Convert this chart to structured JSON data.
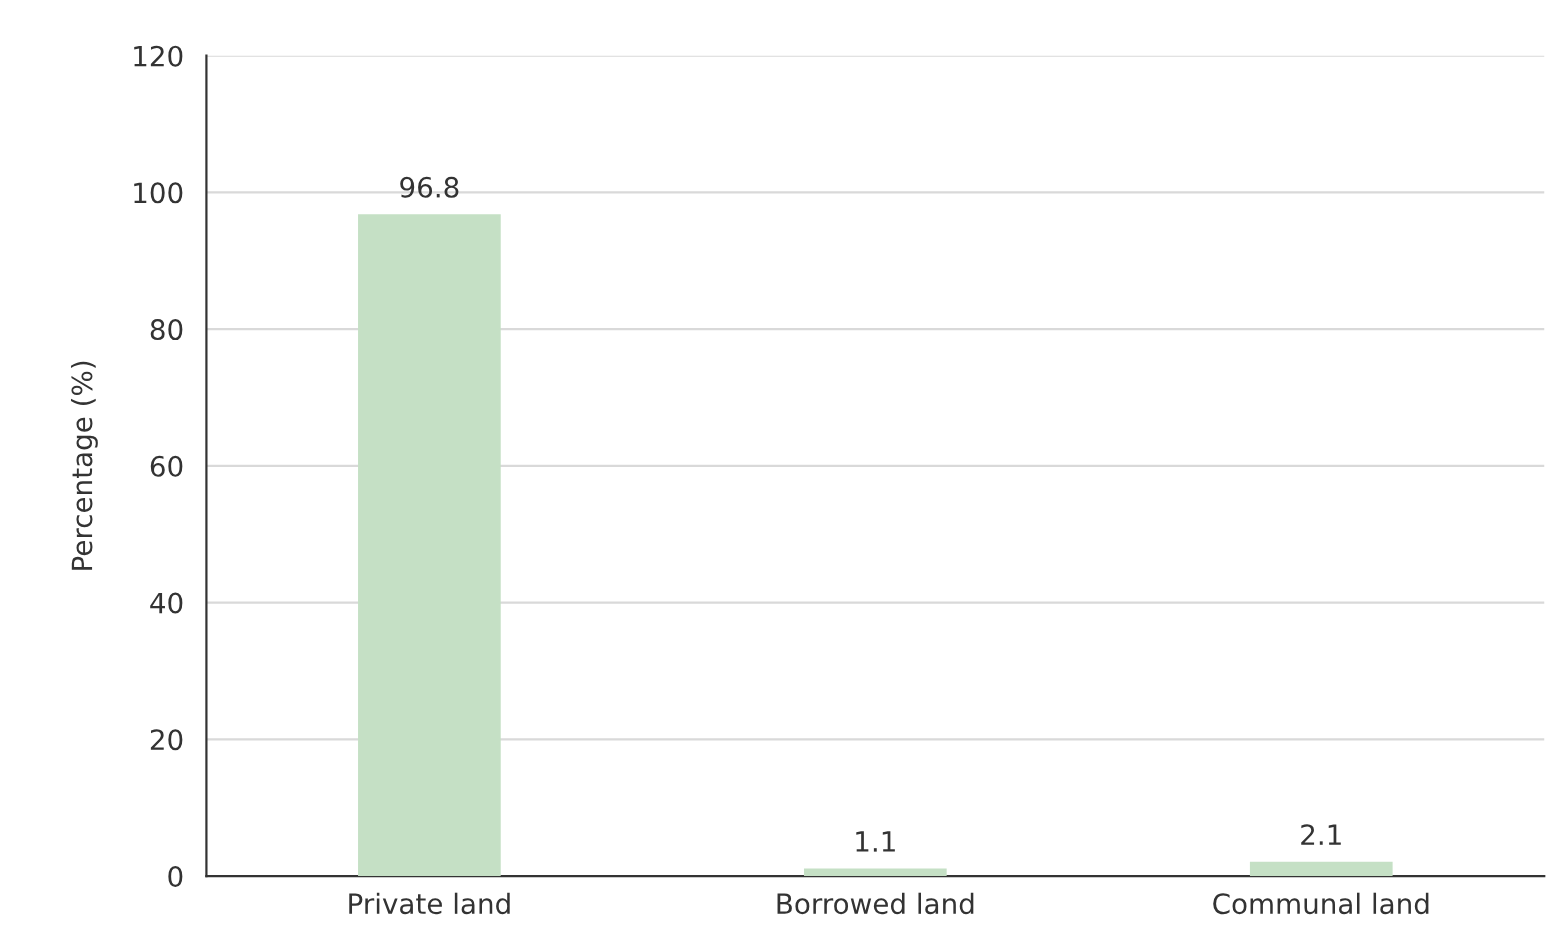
{
  "chart_data": {
    "type": "bar",
    "ylabel": "Percentage (%)",
    "categories": [
      "Private land",
      "Borrowed land",
      "Communal land"
    ],
    "values": [
      96.8,
      1.1,
      2.1
    ],
    "color": "#c5e0c5",
    "ylim": [
      0,
      120
    ],
    "yticks": [
      0,
      20,
      40,
      60,
      80,
      100,
      120
    ],
    "grid": "y",
    "data_labels": true
  }
}
